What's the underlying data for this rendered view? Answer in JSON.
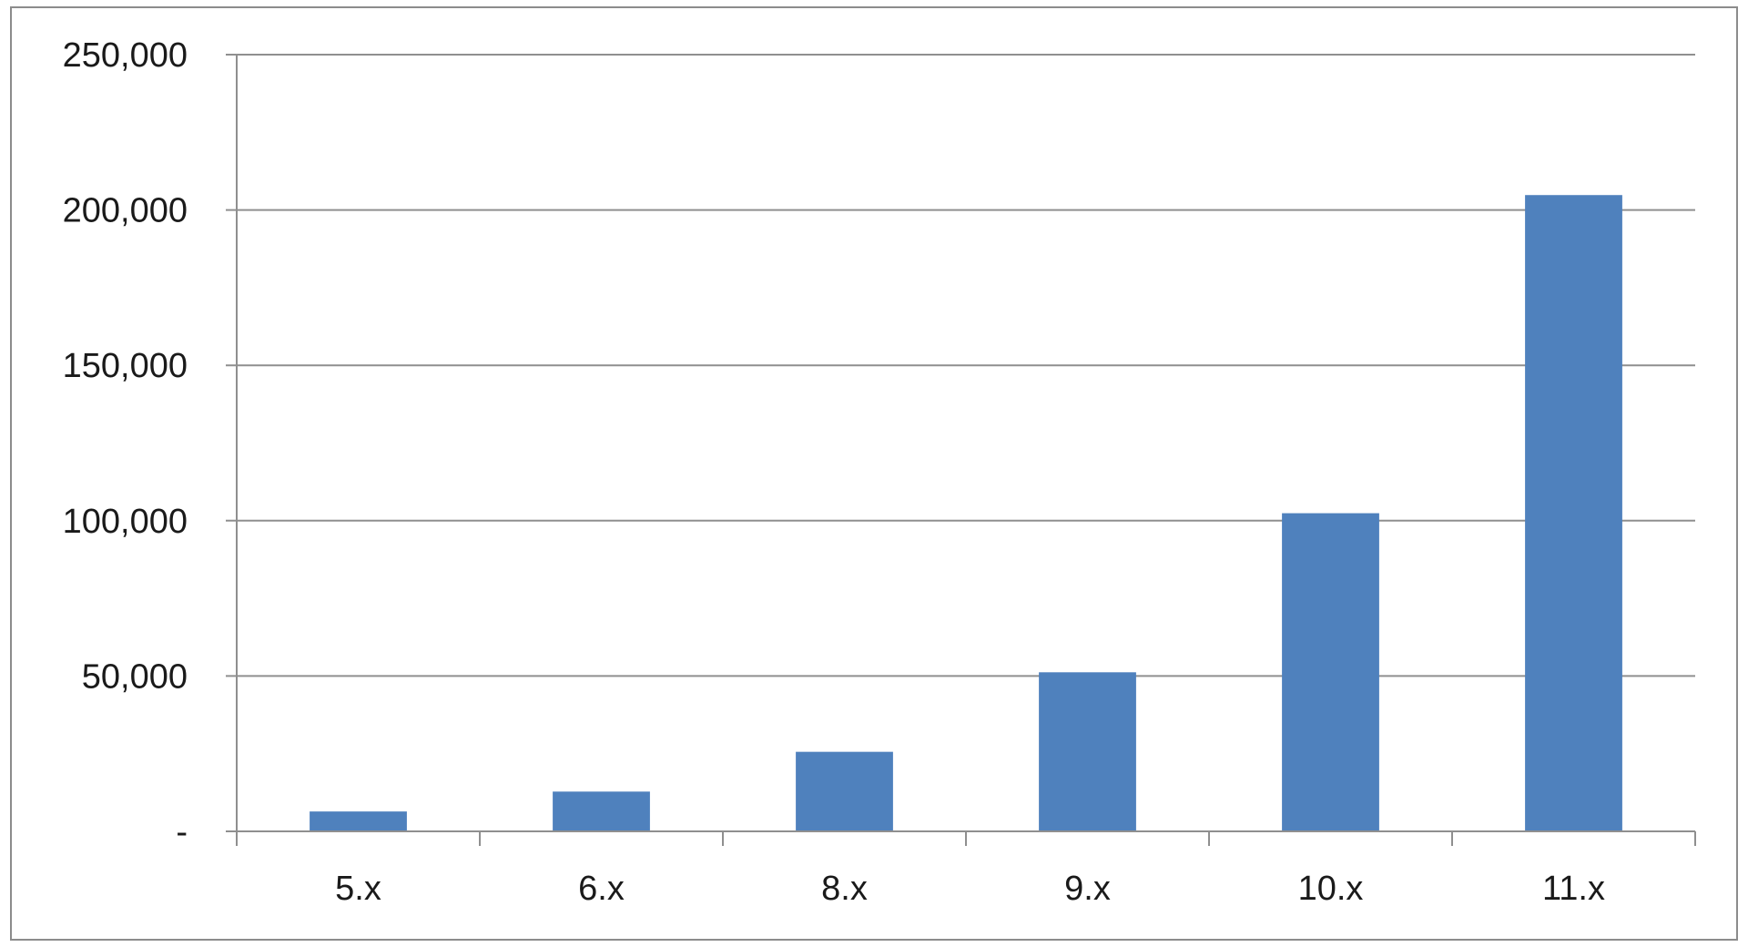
{
  "chart_data": {
    "type": "bar",
    "title": "",
    "xlabel": "",
    "ylabel": "",
    "categories": [
      "5.x",
      "6.x",
      "8.x",
      "9.x",
      "10.x",
      "11.x"
    ],
    "series": [
      {
        "values": [
          6400,
          12800,
          25600,
          51200,
          102400,
          204800
        ]
      }
    ],
    "ylim": [
      0,
      250000
    ],
    "y_ticks": [
      0,
      50000,
      100000,
      150000,
      200000,
      250000
    ],
    "y_tick_labels": [
      "-",
      "50,000",
      "100,000",
      "150,000",
      "200,000",
      "250,000"
    ],
    "grid": true,
    "legend": "none",
    "colors": {
      "bar": "#4f81bd"
    }
  }
}
